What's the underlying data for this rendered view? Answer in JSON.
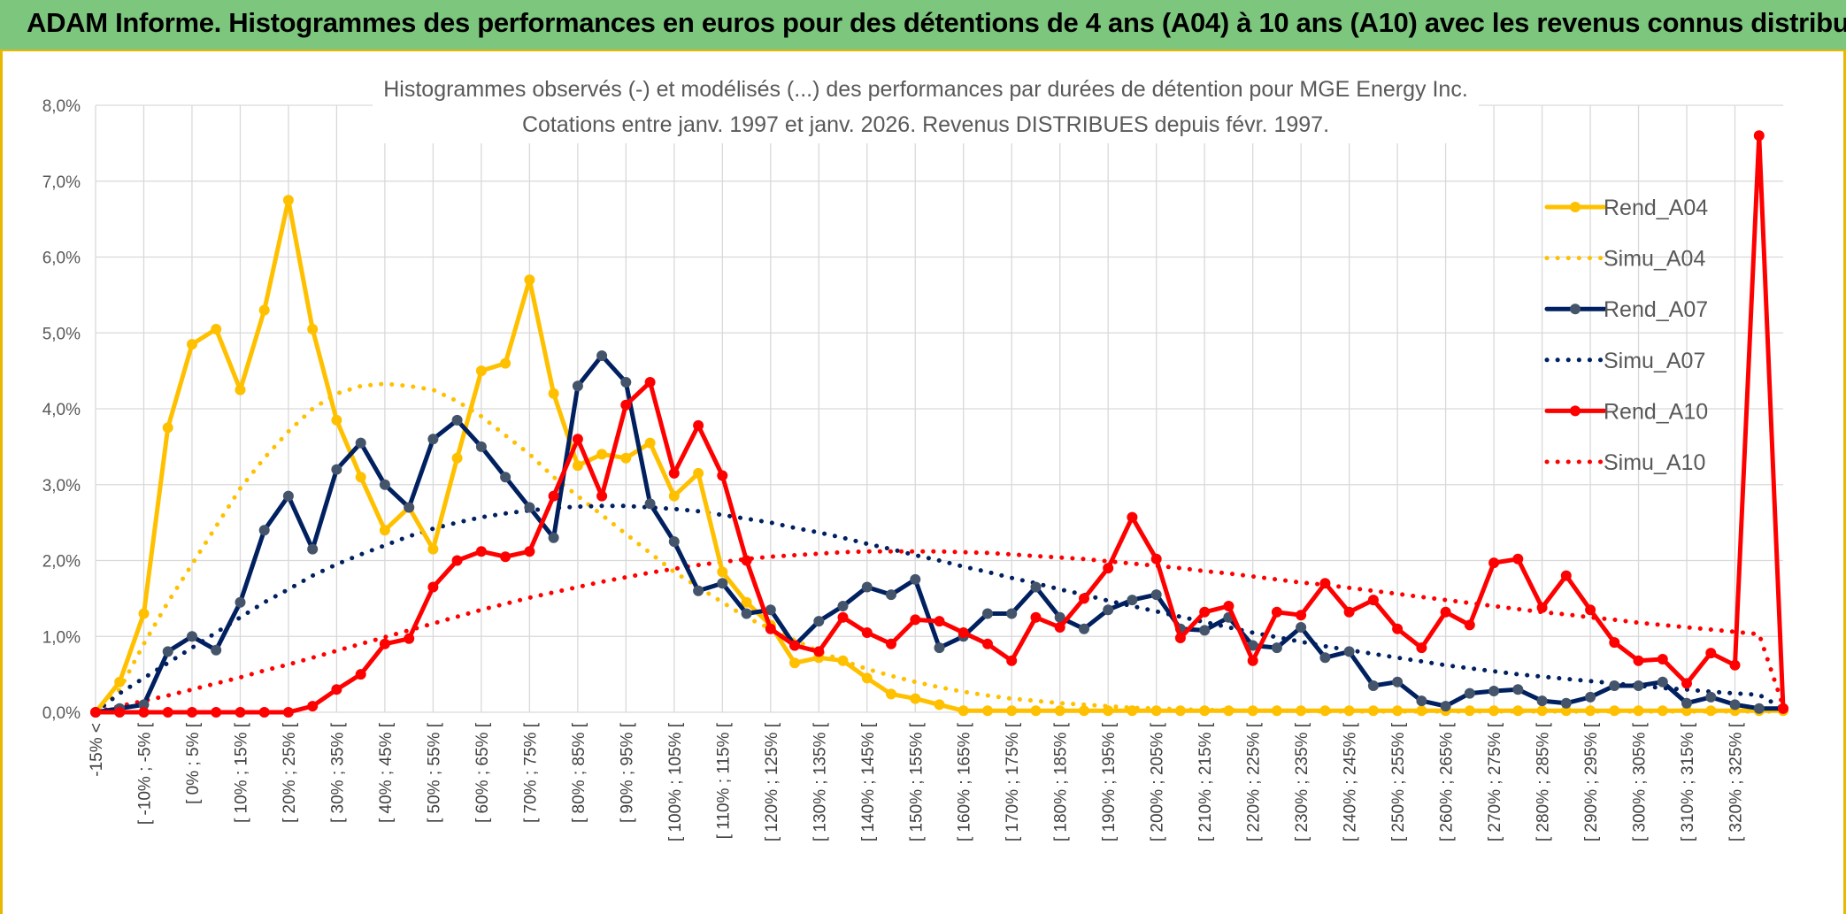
{
  "banner": {
    "title": "ADAM Informe. Histogrammes des performances en euros pour des détentions de 4 ans (A04) à 10 ans (A10) avec les revenus connus distribués"
  },
  "chart_data": {
    "type": "line",
    "title": "Histogrammes observés (-) et modélisés (...) des performances par durées de détention pour MGE Energy Inc.",
    "subtitle": "Cotations entre janv. 1997 et janv. 2026. Revenus DISTRIBUES depuis févr. 1997.",
    "xlabel": "",
    "ylabel": "",
    "ylim": [
      0,
      8
    ],
    "yticks": [
      "0,0%",
      "1,0%",
      "2,0%",
      "3,0%",
      "4,0%",
      "5,0%",
      "6,0%",
      "7,0%",
      "8,0%"
    ],
    "grid": true,
    "legend_position": "right",
    "x_ticks": [
      "-15% <",
      "[ -10% ; -5% [",
      "[ 0% ; 5% [",
      "[ 10% ; 15% [",
      "[ 20% ; 25% [",
      "[ 30% ; 35% [",
      "[ 40% ; 45% [",
      "[ 50% ; 55% [",
      "[ 60% ; 65% [",
      "[ 70% ; 75% [",
      "[ 80% ; 85% [",
      "[ 90% ; 95% [",
      "[ 100% ; 105% [",
      "[ 110% ; 115% [",
      "[ 120% ; 125% [",
      "[ 130% ; 135% [",
      "[ 140% ; 145% [",
      "[ 150% ; 155% [",
      "[ 160% ; 165% [",
      "[ 170% ; 175% [",
      "[ 180% ; 185% [",
      "[ 190% ; 195% [",
      "[ 200% ; 205% [",
      "[ 210% ; 215% [",
      "[ 220% ; 225% [",
      "[ 230% ; 235% [",
      "[ 240% ; 245% [",
      "[ 250% ; 255% [",
      "[ 260% ; 265% [",
      "[ 270% ; 275% [",
      "[ 280% ; 285% [",
      "[ 290% ; 295% [",
      "[ 300% ; 305% [",
      "[ 310% ; 315% [",
      "[ 320% ; 325% ["
    ],
    "series": [
      {
        "name": "Rend_A04",
        "style": "solid",
        "color": "#ffc000",
        "values": [
          0.0,
          0.4,
          1.3,
          3.75,
          4.85,
          5.05,
          4.25,
          5.3,
          6.75,
          5.05,
          3.85,
          3.1,
          2.4,
          2.7,
          2.15,
          3.35,
          4.5,
          4.6,
          5.7,
          4.2,
          3.25,
          3.4,
          3.35,
          3.55,
          2.85,
          3.15,
          1.85,
          1.45,
          1.15,
          0.65,
          0.72,
          0.68,
          0.45,
          0.24,
          0.18,
          0.1,
          0.02,
          0.02,
          0.02,
          0.02,
          0.02,
          0.02,
          0.02,
          0.02,
          0.02,
          0.02,
          0.02,
          0.02,
          0.02,
          0.02,
          0.02,
          0.02,
          0.02,
          0.02,
          0.02,
          0.02,
          0.02,
          0.02,
          0.02,
          0.02,
          0.02,
          0.02,
          0.02,
          0.02,
          0.02,
          0.02,
          0.02,
          0.02,
          0.02,
          0.02,
          0.02
        ]
      },
      {
        "name": "Simu_A04",
        "style": "dotted",
        "color": "#ffc000",
        "values": [
          0.0,
          0.3,
          0.9,
          1.45,
          1.95,
          2.45,
          2.95,
          3.35,
          3.7,
          4.0,
          4.2,
          4.3,
          4.33,
          4.3,
          4.25,
          4.1,
          3.9,
          3.65,
          3.4,
          3.1,
          2.85,
          2.6,
          2.35,
          2.1,
          1.85,
          1.65,
          1.45,
          1.25,
          1.1,
          0.95,
          0.8,
          0.68,
          0.57,
          0.48,
          0.4,
          0.33,
          0.27,
          0.22,
          0.18,
          0.15,
          0.12,
          0.1,
          0.08,
          0.06,
          0.05,
          0.04,
          0.03,
          0.03,
          0.02,
          0.02,
          0.02,
          0.01,
          0.01,
          0.01,
          0.01,
          0.01,
          0.01,
          0.01,
          0.01,
          0.01,
          0.01,
          0.01,
          0.01,
          0.01,
          0.01,
          0.01,
          0.01,
          0.01,
          0.01,
          0.01,
          0.01
        ]
      },
      {
        "name": "Rend_A07",
        "style": "solid",
        "color": "#002060",
        "values": [
          0.0,
          0.05,
          0.1,
          0.8,
          1.0,
          0.82,
          1.45,
          2.4,
          2.85,
          2.15,
          3.2,
          3.55,
          3.0,
          2.7,
          3.6,
          3.85,
          3.5,
          3.1,
          2.7,
          2.3,
          4.3,
          4.7,
          4.35,
          2.75,
          2.25,
          1.6,
          1.7,
          1.3,
          1.35,
          0.88,
          1.2,
          1.4,
          1.65,
          1.55,
          1.75,
          0.85,
          1.0,
          1.3,
          1.3,
          1.65,
          1.25,
          1.1,
          1.35,
          1.48,
          1.55,
          1.1,
          1.08,
          1.25,
          0.88,
          0.85,
          1.12,
          0.72,
          0.8,
          0.35,
          0.4,
          0.15,
          0.08,
          0.25,
          0.28,
          0.3,
          0.15,
          0.12,
          0.2,
          0.35,
          0.35,
          0.4,
          0.12,
          0.2,
          0.1,
          0.05,
          0.05
        ]
      },
      {
        "name": "Simu_A07",
        "style": "dotted",
        "color": "#002060",
        "values": [
          0.0,
          0.25,
          0.45,
          0.65,
          0.85,
          1.05,
          1.25,
          1.45,
          1.62,
          1.8,
          1.95,
          2.08,
          2.2,
          2.32,
          2.42,
          2.5,
          2.57,
          2.62,
          2.66,
          2.69,
          2.71,
          2.72,
          2.72,
          2.7,
          2.68,
          2.65,
          2.6,
          2.55,
          2.5,
          2.43,
          2.37,
          2.3,
          2.22,
          2.15,
          2.07,
          2.0,
          1.92,
          1.85,
          1.77,
          1.7,
          1.62,
          1.55,
          1.47,
          1.4,
          1.33,
          1.26,
          1.19,
          1.12,
          1.05,
          0.99,
          0.93,
          0.87,
          0.82,
          0.77,
          0.72,
          0.67,
          0.62,
          0.58,
          0.54,
          0.5,
          0.47,
          0.44,
          0.41,
          0.38,
          0.35,
          0.32,
          0.3,
          0.27,
          0.25,
          0.23,
          0.05
        ]
      },
      {
        "name": "Rend_A10",
        "style": "solid",
        "color": "#ff0000",
        "values": [
          0.0,
          0.0,
          0.0,
          0.0,
          0.0,
          0.0,
          0.0,
          0.0,
          0.0,
          0.08,
          0.3,
          0.5,
          0.9,
          0.97,
          1.65,
          2.0,
          2.12,
          2.05,
          2.12,
          2.85,
          3.6,
          2.85,
          4.05,
          4.35,
          3.15,
          3.78,
          3.12,
          2.0,
          1.1,
          0.88,
          0.8,
          1.25,
          1.05,
          0.9,
          1.22,
          1.2,
          1.05,
          0.9,
          0.68,
          1.25,
          1.12,
          1.5,
          1.9,
          2.57,
          2.02,
          0.98,
          1.32,
          1.4,
          0.68,
          1.32,
          1.28,
          1.7,
          1.32,
          1.48,
          1.1,
          0.85,
          1.32,
          1.15,
          1.97,
          2.02,
          1.38,
          1.8,
          1.35,
          0.92,
          0.68,
          0.7,
          0.38,
          0.78,
          0.62,
          7.6,
          0.05
        ]
      },
      {
        "name": "Simu_A10",
        "style": "dotted",
        "color": "#ff0000",
        "values": [
          0.0,
          0.08,
          0.15,
          0.22,
          0.3,
          0.38,
          0.46,
          0.55,
          0.63,
          0.72,
          0.81,
          0.9,
          0.99,
          1.08,
          1.17,
          1.26,
          1.35,
          1.43,
          1.51,
          1.58,
          1.65,
          1.72,
          1.78,
          1.84,
          1.89,
          1.94,
          1.98,
          2.02,
          2.05,
          2.07,
          2.09,
          2.11,
          2.12,
          2.12,
          2.12,
          2.12,
          2.11,
          2.1,
          2.08,
          2.06,
          2.04,
          2.02,
          1.99,
          1.96,
          1.93,
          1.9,
          1.86,
          1.83,
          1.79,
          1.75,
          1.71,
          1.68,
          1.64,
          1.6,
          1.56,
          1.52,
          1.48,
          1.44,
          1.4,
          1.36,
          1.32,
          1.29,
          1.25,
          1.22,
          1.18,
          1.15,
          1.12,
          1.09,
          1.06,
          1.03,
          0.08
        ]
      }
    ]
  }
}
